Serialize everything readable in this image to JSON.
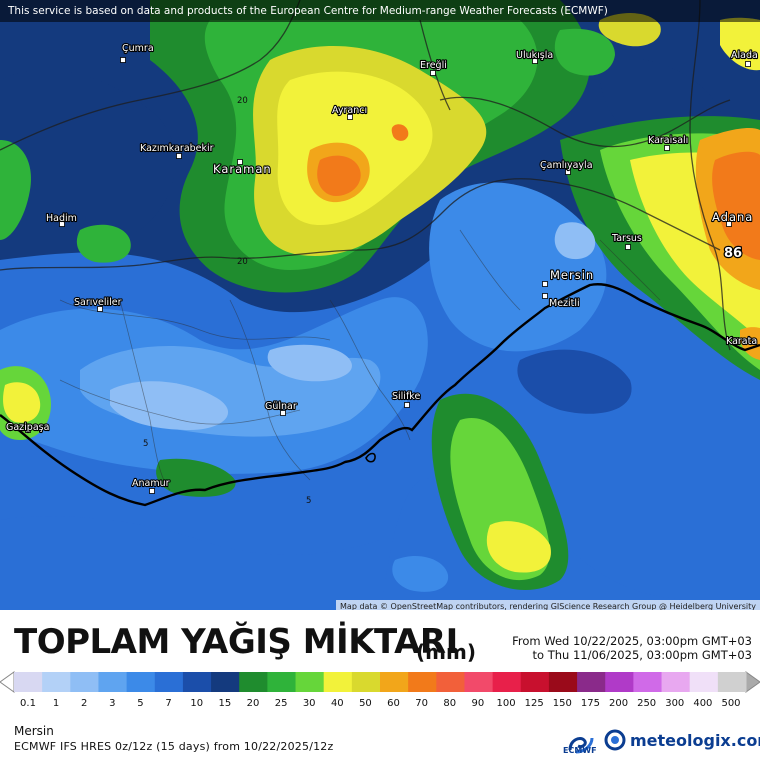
{
  "attribution_top": "This service is based on data and products of the European Centre for Medium-range Weather Forecasts (ECMWF)",
  "attribution_map": "Map data © OpenStreetMap contributors, rendering GIScience Research Group @ Heidelberg University",
  "title": "TOPLAM YAĞIŞ MİKTARI",
  "unit": "(mm)",
  "period": {
    "from": "From Wed 10/22/2025, 03:00pm GMT+03",
    "to": "to Thu 11/06/2025, 03:00pm GMT+03"
  },
  "location": "Mersin",
  "model_line": "ECMWF IFS HRES 0z/12z (15 days) from 10/22/2025/12z",
  "brand_ecmwf": "ECMWF",
  "brand_meteologix": "meteologix.com",
  "legend": {
    "labels": [
      "0.1",
      "1",
      "2",
      "3",
      "5",
      "7",
      "10",
      "15",
      "20",
      "25",
      "30",
      "40",
      "50",
      "60",
      "70",
      "80",
      "90",
      "100",
      "125",
      "150",
      "175",
      "200",
      "250",
      "300",
      "400",
      "500"
    ],
    "colors": [
      "#d8d8f2",
      "#b3d1f7",
      "#8fbef5",
      "#5fa4f0",
      "#3c8ae8",
      "#2a6fd6",
      "#1b4eaa",
      "#143a7e",
      "#1f8c2e",
      "#2fb33a",
      "#66d63a",
      "#f2f23a",
      "#d9d92e",
      "#f2a61a",
      "#f27a1a",
      "#f2603a",
      "#f24a6a",
      "#e8204a",
      "#c8102e",
      "#9a0a1a",
      "#8a2a8a",
      "#b03ac8",
      "#d06ae8",
      "#e8a8f0",
      "#f0e0f8",
      "#d0d0d0"
    ]
  },
  "cities": [
    {
      "name": "Çumra",
      "dot": [
        123,
        60
      ],
      "label": [
        122,
        51
      ]
    },
    {
      "name": "Ereğli",
      "dot": [
        433,
        73
      ],
      "label": [
        420,
        68
      ]
    },
    {
      "name": "Ulukışla",
      "dot": [
        535,
        61
      ],
      "label": [
        516,
        58
      ]
    },
    {
      "name": "Alada",
      "dot": [
        748,
        64
      ],
      "label": [
        731,
        58
      ]
    },
    {
      "name": "Ayrancı",
      "dot": [
        350,
        117
      ],
      "label": [
        332,
        113
      ]
    },
    {
      "name": "Kazımkarabekir",
      "dot": [
        179,
        156
      ],
      "label": [
        140,
        151
      ]
    },
    {
      "name": "Karaisalı",
      "dot": [
        667,
        148
      ],
      "label": [
        648,
        143
      ]
    },
    {
      "name": "Karaman",
      "dot": [
        240,
        162
      ],
      "label": [
        213,
        173
      ],
      "big": true
    },
    {
      "name": "Çamlıyayla",
      "dot": [
        568,
        172
      ],
      "label": [
        540,
        168
      ]
    },
    {
      "name": "Hadim",
      "dot": [
        62,
        224
      ],
      "label": [
        46,
        221
      ]
    },
    {
      "name": "Tarsus",
      "dot": [
        628,
        247
      ],
      "label": [
        612,
        241
      ]
    },
    {
      "name": "Adana",
      "dot": [
        729,
        224
      ],
      "label": [
        712,
        221
      ],
      "big": true
    },
    {
      "name": "Mersin",
      "dot": [
        545,
        284
      ],
      "label": [
        550,
        279
      ],
      "big": true
    },
    {
      "name": "Mezitli",
      "dot": [
        545,
        296
      ],
      "label": [
        549,
        306
      ]
    },
    {
      "name": "Sarıveliler",
      "dot": [
        100,
        309
      ],
      "label": [
        74,
        305
      ]
    },
    {
      "name": "Karata",
      "dot": [
        736,
        340
      ],
      "label": [
        726,
        344
      ]
    },
    {
      "name": "Gülnar",
      "dot": [
        283,
        413
      ],
      "label": [
        265,
        409
      ]
    },
    {
      "name": "Silifke",
      "dot": [
        407,
        405
      ],
      "label": [
        392,
        399
      ]
    },
    {
      "name": "Gazipaşa",
      "dot": [
        28,
        430
      ],
      "label": [
        6,
        430
      ]
    },
    {
      "name": "Anamur",
      "dot": [
        152,
        491
      ],
      "label": [
        132,
        486
      ]
    }
  ],
  "contour_labels": [
    {
      "text": "20",
      "pos": [
        237,
        103
      ]
    },
    {
      "text": "20",
      "pos": [
        237,
        264
      ]
    },
    {
      "text": "5",
      "pos": [
        143,
        446
      ]
    },
    {
      "text": "5",
      "pos": [
        306,
        503
      ]
    },
    {
      "text": "86",
      "pos": [
        724,
        257
      ]
    }
  ]
}
